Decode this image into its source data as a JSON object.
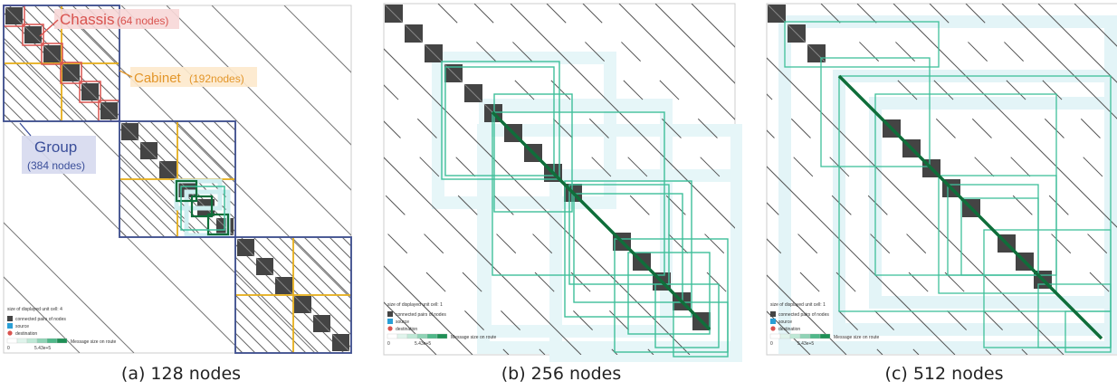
{
  "panels": [
    {
      "caption": "(a) 128 nodes",
      "legend": {
        "title": "size of displayed unit cell: 4",
        "items": [
          "connected pairs of nodes",
          "source",
          "destination"
        ],
        "scale_label": "Message size on route",
        "scale_min": "0",
        "scale_max": "5.43e+5"
      },
      "annotations": {
        "chassis_label": "Chassis",
        "chassis_count": "(64 nodes)",
        "cabinet_label": "Cabinet",
        "cabinet_count": "(192nodes)",
        "group_label": "Group",
        "group_count": "(384 nodes)"
      }
    },
    {
      "caption": "(b) 256 nodes",
      "legend": {
        "title": "size of displayed unit cell: 1",
        "items": [
          "connected pairs of nodes",
          "source",
          "destination"
        ],
        "scale_label": "Message size on route",
        "scale_min": "0",
        "scale_max": "5.43e+5"
      }
    },
    {
      "caption": "(c) 512 nodes",
      "legend": {
        "title": "size of displayed unit cell: 1",
        "items": [
          "connected pairs of nodes",
          "source",
          "destination"
        ],
        "scale_label": "Message size on route",
        "scale_min": "0",
        "scale_max": "5.43e+5"
      }
    }
  ],
  "colors": {
    "chassis": "#d9534f",
    "cabinet": "#e6b020",
    "group": "#3b4f9a",
    "route": "#3fbf9a",
    "route_light": "#cfeef0",
    "route_dark": "#0f6e3a",
    "cell": "#444444"
  }
}
